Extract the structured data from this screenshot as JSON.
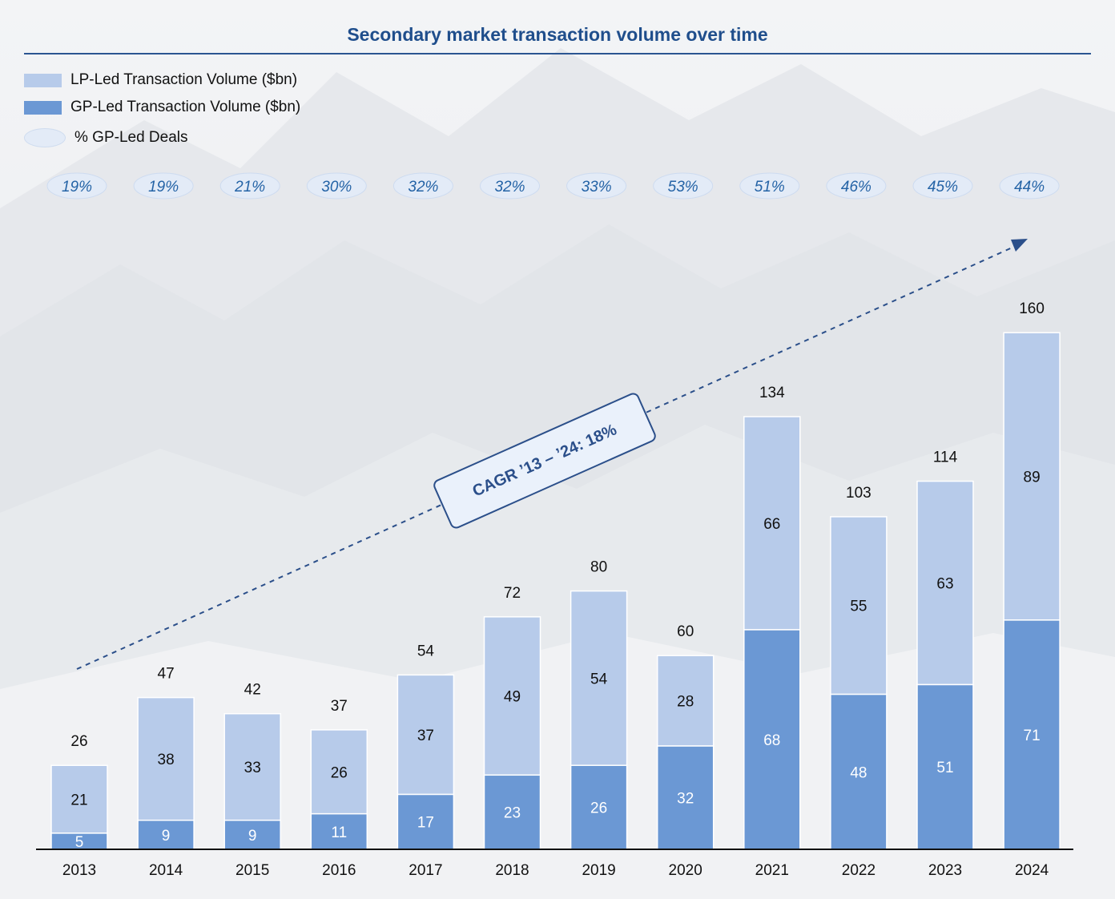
{
  "header": {
    "title": "Secondary market transaction volume over time"
  },
  "legend": {
    "lp_label": "LP-Led Transaction Volume ($bn)",
    "gp_label": "GP-Led Transaction Volume ($bn)",
    "pct_label": "% GP-Led Deals"
  },
  "annotation": {
    "cagr": "CAGR ’13 – ’24: 18%"
  },
  "colors": {
    "lp": "#b7cbea",
    "gp": "#6b98d4",
    "title": "#1f4e8c",
    "pct_text": "#2463a6",
    "pct_fill": "#e3ebf7",
    "arrow": "#2b4f8a"
  },
  "chart_data": {
    "type": "bar",
    "stacked": true,
    "title": "Secondary market transaction volume over time",
    "xlabel": "",
    "ylabel": "",
    "ylim": [
      0,
      160
    ],
    "grid": false,
    "legend_position": "top-left",
    "categories": [
      "2013",
      "2014",
      "2015",
      "2016",
      "2017",
      "2018",
      "2019",
      "2020",
      "2021",
      "2022",
      "2023",
      "2024"
    ],
    "series": [
      {
        "name": "GP-Led Transaction Volume ($bn)",
        "values": [
          5,
          9,
          9,
          11,
          17,
          23,
          26,
          32,
          68,
          48,
          51,
          71
        ]
      },
      {
        "name": "LP-Led Transaction Volume ($bn)",
        "values": [
          21,
          38,
          33,
          26,
          37,
          49,
          54,
          28,
          66,
          55,
          63,
          89
        ]
      }
    ],
    "totals": [
      26,
      47,
      42,
      37,
      54,
      72,
      80,
      60,
      134,
      103,
      114,
      160
    ],
    "gp_led_pct": [
      "19%",
      "19%",
      "21%",
      "30%",
      "32%",
      "32%",
      "33%",
      "53%",
      "51%",
      "46%",
      "45%",
      "44%"
    ]
  }
}
